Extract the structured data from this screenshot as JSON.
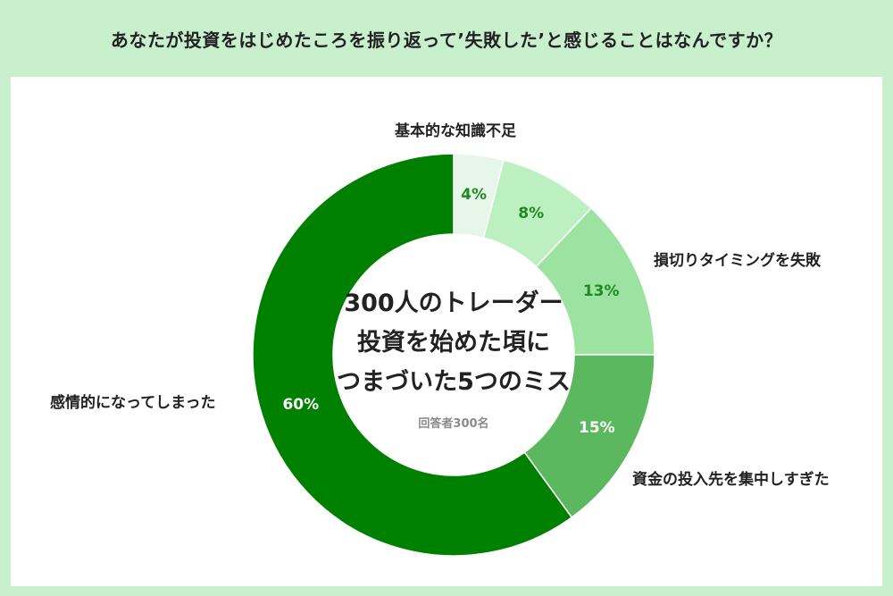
{
  "title": "あなたが投資をはじめたころを振り返って’失敗した’と感じることはなんですか？",
  "center": {
    "line1": "300人のトレーダー",
    "line2": "投資を始めた頃に",
    "line3": "つまづいた5つのミス",
    "respondents": "回答者300名"
  },
  "chart_data": {
    "type": "pie",
    "donut": true,
    "start_angle_deg": 0,
    "direction": "clockwise",
    "slices": [
      {
        "name": "基本的な知識不足",
        "value": 4,
        "label": "4%",
        "color": "#e6f6e8",
        "label_color": "#1f8a1f"
      },
      {
        "name": "",
        "value": 8,
        "label": "8%",
        "color": "#bdf0c0",
        "label_color": "#1f8a1f"
      },
      {
        "name": "損切りタイミングを失敗",
        "value": 13,
        "label": "13%",
        "color": "#9ce3a2",
        "label_color": "#1f8a1f"
      },
      {
        "name": "資金の投入先を集中しすぎた",
        "value": 15,
        "label": "15%",
        "color": "#5cb85f",
        "label_color": "#ffffff"
      },
      {
        "name": "感情的になってしまった",
        "value": 60,
        "label": "60%",
        "color": "#008000",
        "label_color": "#ffffff"
      }
    ]
  }
}
